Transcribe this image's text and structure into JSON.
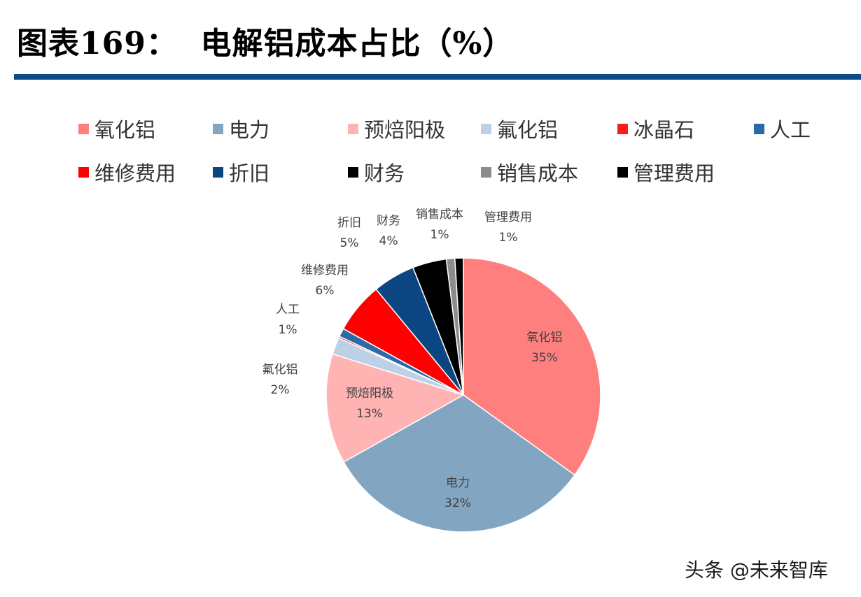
{
  "header": {
    "title": "图表169：  电解铝成本占比（%）"
  },
  "watermark": "头条 @未来智库",
  "chart_data": {
    "type": "pie",
    "title": "",
    "legend_position": "top",
    "slices": [
      {
        "name": "氧化铝",
        "value": 35,
        "label": "35%",
        "color": "#ff7f7f"
      },
      {
        "name": "电力",
        "value": 32,
        "label": "32%",
        "color": "#82a6c2"
      },
      {
        "name": "预焙阳极",
        "value": 13,
        "label": "13%",
        "color": "#ffb3b3"
      },
      {
        "name": "氟化铝",
        "value": 2,
        "label": "2%",
        "color": "#bdd1e6"
      },
      {
        "name": "冰晶石",
        "value": 0.2,
        "label": "",
        "color": "#ff1a1a"
      },
      {
        "name": "人工",
        "value": 1,
        "label": "1%",
        "color": "#2a6aa8"
      },
      {
        "name": "维修费用",
        "value": 6,
        "label": "6%",
        "color": "#ff0000"
      },
      {
        "name": "折旧",
        "value": 5,
        "label": "5%",
        "color": "#0b4682"
      },
      {
        "name": "财务",
        "value": 4,
        "label": "4%",
        "color": "#000000"
      },
      {
        "name": "销售成本",
        "value": 1,
        "label": "1%",
        "color": "#8c8c8c"
      },
      {
        "name": "管理费用",
        "value": 1,
        "label": "1%",
        "color": "#000000"
      }
    ]
  }
}
